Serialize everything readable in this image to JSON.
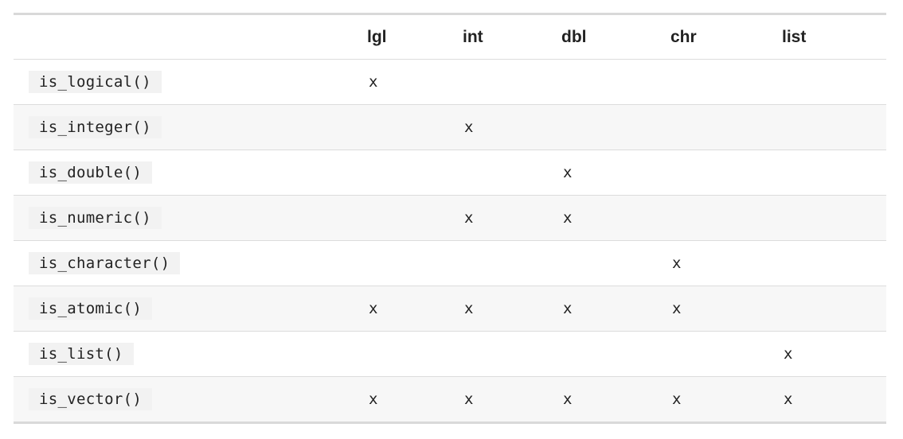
{
  "table": {
    "columns": [
      "",
      "lgl",
      "int",
      "dbl",
      "chr",
      "list"
    ],
    "rows": [
      {
        "fn": "is_logical()",
        "cells": [
          "x",
          "",
          "",
          "",
          ""
        ]
      },
      {
        "fn": "is_integer()",
        "cells": [
          "",
          "x",
          "",
          "",
          ""
        ]
      },
      {
        "fn": "is_double()",
        "cells": [
          "",
          "",
          "x",
          "",
          ""
        ]
      },
      {
        "fn": "is_numeric()",
        "cells": [
          "",
          "x",
          "x",
          "",
          ""
        ]
      },
      {
        "fn": "is_character()",
        "cells": [
          "",
          "",
          "",
          "x",
          ""
        ]
      },
      {
        "fn": "is_atomic()",
        "cells": [
          "x",
          "x",
          "x",
          "x",
          ""
        ]
      },
      {
        "fn": "is_list()",
        "cells": [
          "",
          "",
          "",
          "",
          "x"
        ]
      },
      {
        "fn": "is_vector()",
        "cells": [
          "x",
          "x",
          "x",
          "x",
          "x"
        ]
      }
    ]
  }
}
